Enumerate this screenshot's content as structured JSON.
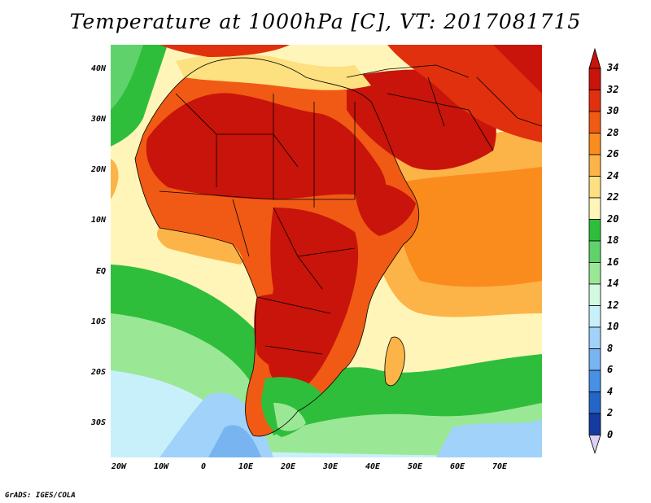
{
  "title": "Temperature at 1000hPa [C], VT: 2017081715",
  "credit": "GrADS: IGES/COLA",
  "map": {
    "lon_range": [
      -22,
      80
    ],
    "lat_range": [
      -37,
      45
    ],
    "lat_ticks": [
      "40N",
      "30N",
      "20N",
      "10N",
      "EQ",
      "10S",
      "20S",
      "30S"
    ],
    "lon_ticks": [
      "20W",
      "10W",
      "0",
      "10E",
      "20E",
      "30E",
      "40E",
      "50E",
      "60E",
      "70E"
    ]
  },
  "colorbar": {
    "labels": [
      "34",
      "32",
      "30",
      "28",
      "26",
      "24",
      "22",
      "20",
      "18",
      "16",
      "14",
      "12",
      "10",
      "8",
      "6",
      "4",
      "2",
      "0"
    ],
    "colors": [
      "#c8140a",
      "#e1300e",
      "#f05a14",
      "#fa8c1e",
      "#fcb448",
      "#fde080",
      "#fff5b8",
      "#2fbe3c",
      "#60d26c",
      "#9ae896",
      "#d2fae0",
      "#c8f0fa",
      "#a0d2fa",
      "#78b4f0",
      "#4690e6",
      "#2366c8",
      "#143ca0",
      "#0a1e78"
    ],
    "top_arrow_color": "#c8140a",
    "bottom_arrow_color": "#dcd2f5"
  }
}
